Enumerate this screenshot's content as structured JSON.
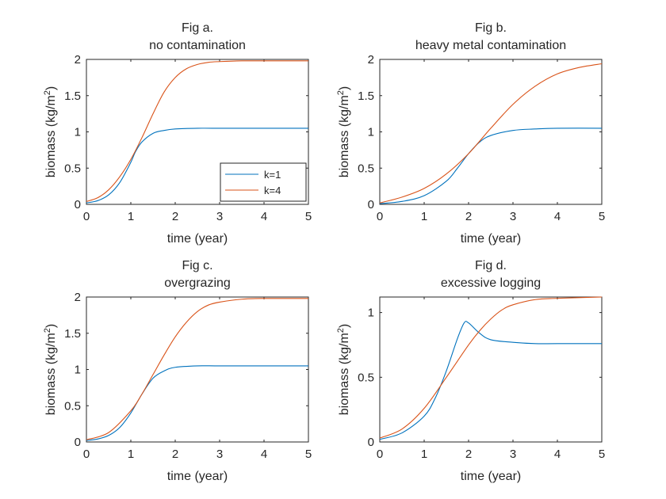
{
  "colors": {
    "k1": "#0072BD",
    "k4": "#D95319",
    "axis": "#262626"
  },
  "chart_data": [
    {
      "type": "line",
      "title": [
        "Fig a.",
        "no contamination"
      ],
      "xlabel": "time (year)",
      "ylabel": "biomass (kg/m",
      "ylabel_sup": "2",
      "ylabel_end": ")",
      "xlim": [
        0,
        5
      ],
      "ylim": [
        0,
        2
      ],
      "xticks": [
        0,
        1,
        2,
        3,
        4,
        5
      ],
      "yticks": [
        0,
        0.5,
        1,
        1.5,
        2
      ],
      "xtick_labels": [
        "0",
        "1",
        "2",
        "3",
        "4",
        "5"
      ],
      "ytick_labels": [
        "0",
        "0.5",
        "1",
        "1.5",
        "2"
      ],
      "legend": {
        "placement": "bottom-right",
        "entries": [
          "k=1",
          "k=4"
        ]
      },
      "series": [
        {
          "name": "k=1",
          "x": [
            0,
            0.25,
            0.5,
            0.75,
            1.0,
            1.1,
            1.25,
            1.5,
            1.75,
            2.0,
            2.5,
            3.0,
            3.5,
            4.0,
            5.0
          ],
          "values": [
            0.02,
            0.05,
            0.13,
            0.3,
            0.58,
            0.72,
            0.86,
            0.98,
            1.02,
            1.04,
            1.05,
            1.05,
            1.05,
            1.05,
            1.05
          ]
        },
        {
          "name": "k=4",
          "x": [
            0,
            0.25,
            0.5,
            0.75,
            1.0,
            1.25,
            1.5,
            1.75,
            2.0,
            2.25,
            2.5,
            2.75,
            3.0,
            3.5,
            4.0,
            5.0
          ],
          "values": [
            0.04,
            0.09,
            0.2,
            0.38,
            0.62,
            0.92,
            1.25,
            1.55,
            1.75,
            1.87,
            1.93,
            1.96,
            1.97,
            1.98,
            1.98,
            1.98
          ]
        }
      ]
    },
    {
      "type": "line",
      "title": [
        "Fig b.",
        "heavy metal contamination"
      ],
      "xlabel": "time (year)",
      "ylabel": "biomass (kg/m",
      "ylabel_sup": "2",
      "ylabel_end": ")",
      "xlim": [
        0,
        5
      ],
      "ylim": [
        0,
        2
      ],
      "xticks": [
        0,
        1,
        2,
        3,
        4,
        5
      ],
      "yticks": [
        0,
        0.5,
        1,
        1.5,
        2
      ],
      "xtick_labels": [
        "0",
        "1",
        "2",
        "3",
        "4",
        "5"
      ],
      "ytick_labels": [
        "0",
        "0.5",
        "1",
        "1.5",
        "2"
      ],
      "series": [
        {
          "name": "k=1",
          "x": [
            0,
            0.5,
            1.0,
            1.5,
            1.75,
            2.0,
            2.25,
            2.5,
            3.0,
            3.5,
            4.0,
            5.0
          ],
          "values": [
            0.01,
            0.04,
            0.12,
            0.32,
            0.5,
            0.7,
            0.86,
            0.95,
            1.02,
            1.04,
            1.05,
            1.05
          ]
        },
        {
          "name": "k=4",
          "x": [
            0,
            0.5,
            1.0,
            1.5,
            2.0,
            2.5,
            3.0,
            3.5,
            4.0,
            4.5,
            5.0
          ],
          "values": [
            0.02,
            0.1,
            0.22,
            0.42,
            0.7,
            1.05,
            1.38,
            1.63,
            1.8,
            1.89,
            1.94
          ]
        }
      ]
    },
    {
      "type": "line",
      "title": [
        "Fig c.",
        "overgrazing"
      ],
      "xlabel": "time (year)",
      "ylabel": "biomass (kg/m",
      "ylabel_sup": "2",
      "ylabel_end": ")",
      "xlim": [
        0,
        5
      ],
      "ylim": [
        0,
        2
      ],
      "xticks": [
        0,
        1,
        2,
        3,
        4,
        5
      ],
      "yticks": [
        0,
        0.5,
        1,
        1.5,
        2
      ],
      "xtick_labels": [
        "0",
        "1",
        "2",
        "3",
        "4",
        "5"
      ],
      "ytick_labels": [
        "0",
        "0.5",
        "1",
        "1.5",
        "2"
      ],
      "series": [
        {
          "name": "k=1",
          "x": [
            0,
            0.25,
            0.5,
            0.75,
            1.0,
            1.25,
            1.5,
            1.75,
            2.0,
            2.5,
            3.0,
            4.0,
            5.0
          ],
          "values": [
            0.02,
            0.04,
            0.09,
            0.2,
            0.4,
            0.66,
            0.88,
            0.98,
            1.03,
            1.05,
            1.05,
            1.05,
            1.05
          ]
        },
        {
          "name": "k=4",
          "x": [
            0,
            0.5,
            1.0,
            1.25,
            1.5,
            1.75,
            2.0,
            2.25,
            2.5,
            2.75,
            3.0,
            3.5,
            4.0,
            5.0
          ],
          "values": [
            0.03,
            0.13,
            0.43,
            0.66,
            0.93,
            1.2,
            1.45,
            1.65,
            1.8,
            1.89,
            1.93,
            1.97,
            1.98,
            1.98
          ]
        }
      ]
    },
    {
      "type": "line",
      "title": [
        "Fig d.",
        "excessive logging"
      ],
      "xlabel": "time (year)",
      "ylabel": "biomass (kg/m",
      "ylabel_sup": "2",
      "ylabel_end": ")",
      "xlim": [
        0,
        5
      ],
      "ylim": [
        0,
        1.12
      ],
      "xticks": [
        0,
        1,
        2,
        3,
        4,
        5
      ],
      "yticks": [
        0,
        0.5,
        1
      ],
      "xtick_labels": [
        "0",
        "1",
        "2",
        "3",
        "4",
        "5"
      ],
      "ytick_labels": [
        "0",
        "0.5",
        "1"
      ],
      "series": [
        {
          "name": "k=1",
          "x": [
            0,
            0.5,
            1.0,
            1.25,
            1.5,
            1.75,
            1.9,
            2.0,
            2.25,
            2.5,
            3.0,
            3.5,
            4.0,
            5.0
          ],
          "values": [
            0.02,
            0.07,
            0.2,
            0.34,
            0.55,
            0.8,
            0.92,
            0.92,
            0.84,
            0.79,
            0.77,
            0.76,
            0.76,
            0.76
          ]
        },
        {
          "name": "k=4",
          "x": [
            0,
            0.5,
            1.0,
            1.5,
            2.0,
            2.25,
            2.5,
            2.75,
            3.0,
            3.5,
            4.0,
            5.0
          ],
          "values": [
            0.03,
            0.1,
            0.26,
            0.5,
            0.75,
            0.86,
            0.95,
            1.02,
            1.06,
            1.1,
            1.11,
            1.12
          ]
        }
      ]
    }
  ]
}
